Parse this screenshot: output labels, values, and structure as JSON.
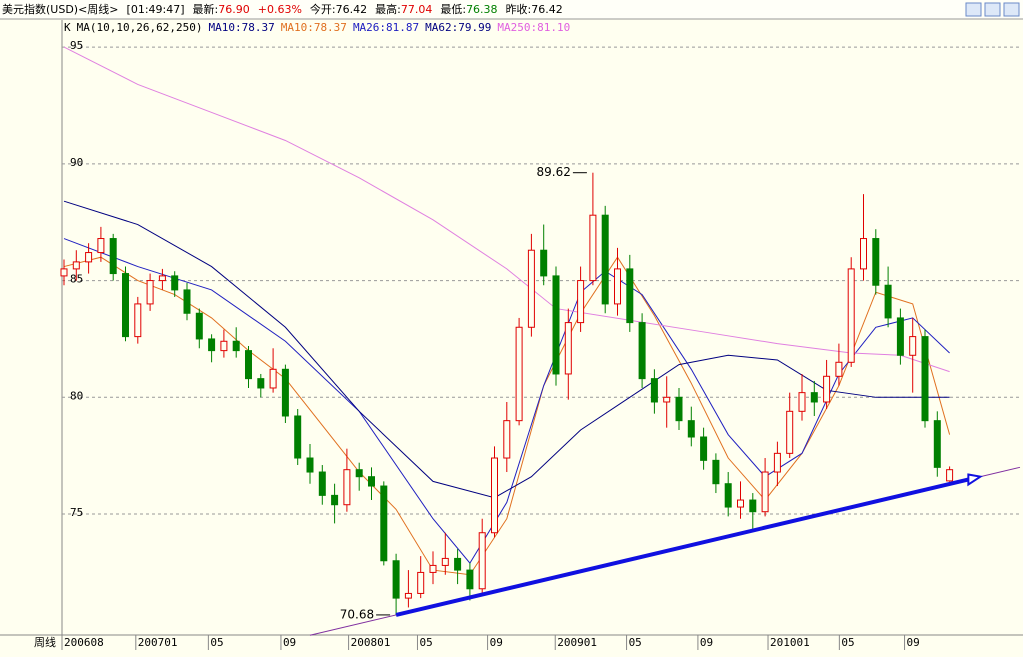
{
  "header": {
    "items": [
      {
        "text": "美元指数(USD)<周线>",
        "color": "#000000"
      },
      {
        "text": "[01:49:47]",
        "color": "#000000"
      },
      {
        "text": "最新:",
        "color": "#000000"
      },
      {
        "text": "76.90",
        "color": "#e00000"
      },
      {
        "text": "+0.63%",
        "color": "#e00000"
      },
      {
        "text": "今开:76.42",
        "color": "#000000"
      },
      {
        "text": "最高:",
        "color": "#000000"
      },
      {
        "text": "77.04",
        "color": "#e00000"
      },
      {
        "text": "最低:",
        "color": "#000000"
      },
      {
        "text": "76.38",
        "color": "#008000"
      },
      {
        "text": "昨收:76.42",
        "color": "#000000"
      }
    ]
  },
  "chart_data": {
    "type": "candlestick",
    "legend": [
      {
        "text": "K",
        "color": "#000000"
      },
      {
        "text": "MA(10,10,26,62,250)",
        "color": "#000000"
      },
      {
        "text": "MA10:78.37",
        "color": "#000080"
      },
      {
        "text": "MA10:78.37",
        "color": "#e07020"
      },
      {
        "text": "MA26:81.87",
        "color": "#2020c0"
      },
      {
        "text": "MA62:79.99",
        "color": "#000080"
      },
      {
        "text": "MA250:81.10",
        "color": "#e060e0"
      }
    ],
    "period_label": "周线",
    "up_color": "#e00000",
    "down_color": "#008000",
    "ohlc": [
      [
        85.2,
        85.9,
        84.8,
        85.5
      ],
      [
        85.5,
        86.3,
        85.0,
        85.8
      ],
      [
        85.8,
        86.6,
        85.3,
        86.2
      ],
      [
        86.2,
        87.3,
        85.8,
        86.8
      ],
      [
        86.8,
        87.0,
        85.0,
        85.3
      ],
      [
        85.3,
        85.6,
        82.4,
        82.6
      ],
      [
        82.6,
        84.3,
        82.3,
        84.0
      ],
      [
        84.0,
        85.3,
        83.7,
        85.0
      ],
      [
        85.0,
        85.5,
        84.6,
        85.2
      ],
      [
        85.2,
        85.4,
        84.3,
        84.6
      ],
      [
        84.6,
        84.9,
        83.3,
        83.6
      ],
      [
        83.6,
        83.8,
        82.1,
        82.5
      ],
      [
        82.5,
        82.7,
        81.5,
        82.0
      ],
      [
        82.0,
        82.9,
        81.7,
        82.4
      ],
      [
        82.4,
        83.0,
        81.7,
        82.0
      ],
      [
        82.0,
        82.2,
        80.4,
        80.8
      ],
      [
        80.8,
        81.0,
        80.0,
        80.4
      ],
      [
        80.4,
        82.1,
        80.2,
        81.2
      ],
      [
        81.2,
        81.4,
        78.9,
        79.2
      ],
      [
        79.2,
        79.5,
        77.1,
        77.4
      ],
      [
        77.4,
        78.0,
        76.3,
        76.8
      ],
      [
        76.8,
        77.1,
        75.4,
        75.8
      ],
      [
        75.8,
        76.3,
        74.6,
        75.4
      ],
      [
        75.4,
        77.8,
        75.1,
        76.9
      ],
      [
        76.9,
        77.2,
        76.0,
        76.6
      ],
      [
        76.6,
        77.0,
        75.6,
        76.2
      ],
      [
        76.2,
        76.4,
        72.8,
        73.0
      ],
      [
        73.0,
        73.3,
        70.68,
        71.4
      ],
      [
        71.4,
        72.6,
        71.0,
        71.6
      ],
      [
        71.6,
        73.2,
        71.4,
        72.5
      ],
      [
        72.5,
        73.4,
        72.0,
        72.8
      ],
      [
        72.8,
        74.2,
        72.4,
        73.1
      ],
      [
        73.1,
        73.5,
        72.0,
        72.6
      ],
      [
        72.6,
        72.9,
        71.3,
        71.8
      ],
      [
        71.8,
        74.8,
        71.6,
        74.2
      ],
      [
        74.2,
        77.9,
        74.0,
        77.4
      ],
      [
        77.4,
        79.8,
        76.8,
        79.0
      ],
      [
        79.0,
        83.4,
        78.8,
        83.0
      ],
      [
        83.0,
        87.0,
        82.6,
        86.3
      ],
      [
        86.3,
        87.4,
        84.8,
        85.2
      ],
      [
        85.2,
        85.6,
        80.5,
        81.0
      ],
      [
        81.0,
        83.8,
        79.9,
        83.2
      ],
      [
        83.2,
        85.6,
        82.8,
        85.0
      ],
      [
        85.0,
        89.62,
        84.8,
        87.8
      ],
      [
        87.8,
        88.2,
        83.6,
        84.0
      ],
      [
        84.0,
        86.4,
        83.5,
        85.5
      ],
      [
        85.5,
        86.1,
        82.8,
        83.2
      ],
      [
        83.2,
        83.6,
        80.4,
        80.8
      ],
      [
        80.8,
        81.2,
        79.3,
        79.8
      ],
      [
        79.8,
        80.9,
        78.7,
        80.0
      ],
      [
        80.0,
        80.4,
        78.6,
        79.0
      ],
      [
        79.0,
        79.6,
        77.9,
        78.3
      ],
      [
        78.3,
        78.7,
        76.9,
        77.3
      ],
      [
        77.3,
        77.6,
        75.9,
        76.3
      ],
      [
        76.3,
        76.8,
        74.9,
        75.3
      ],
      [
        75.3,
        76.4,
        74.8,
        75.6
      ],
      [
        75.6,
        75.9,
        74.3,
        75.1
      ],
      [
        75.1,
        77.4,
        74.9,
        76.8
      ],
      [
        76.8,
        78.1,
        76.2,
        77.6
      ],
      [
        77.6,
        80.2,
        77.4,
        79.4
      ],
      [
        79.4,
        81.0,
        79.0,
        80.2
      ],
      [
        80.2,
        80.7,
        79.2,
        79.8
      ],
      [
        79.8,
        81.6,
        79.5,
        80.9
      ],
      [
        80.9,
        82.3,
        80.5,
        81.5
      ],
      [
        81.5,
        86.0,
        81.3,
        85.5
      ],
      [
        85.5,
        88.7,
        85.0,
        86.8
      ],
      [
        86.8,
        87.2,
        84.4,
        84.8
      ],
      [
        84.8,
        85.6,
        83.0,
        83.4
      ],
      [
        83.4,
        83.8,
        81.4,
        81.8
      ],
      [
        81.8,
        83.4,
        80.2,
        82.6
      ],
      [
        82.6,
        82.9,
        78.7,
        79.0
      ],
      [
        79.0,
        79.4,
        76.6,
        77.0
      ],
      [
        76.42,
        77.04,
        76.38,
        76.9
      ]
    ],
    "series": [
      {
        "color": "#e07020",
        "x": [
          0,
          3,
          6,
          9,
          12,
          15,
          18,
          21,
          24,
          27,
          30,
          33,
          36,
          39,
          42,
          45,
          48,
          51,
          54,
          57,
          60,
          63,
          66,
          69,
          72
        ],
        "values": [
          85.6,
          86.0,
          85.0,
          84.4,
          83.4,
          82.0,
          80.8,
          78.8,
          76.8,
          75.2,
          72.6,
          72.4,
          74.8,
          80.5,
          83.6,
          86.0,
          83.5,
          80.6,
          77.4,
          75.6,
          77.6,
          80.5,
          84.5,
          84.0,
          78.4
        ]
      },
      {
        "color": "#2020c0",
        "x": [
          0,
          6,
          12,
          18,
          24,
          30,
          33,
          36,
          39,
          42,
          44,
          47,
          51,
          54,
          57,
          60,
          63,
          66,
          69,
          72
        ],
        "values": [
          86.8,
          85.6,
          84.6,
          82.4,
          79.4,
          74.8,
          72.9,
          75.5,
          80.5,
          84.5,
          85.4,
          84.4,
          81.2,
          78.4,
          76.6,
          77.6,
          81.0,
          83.0,
          83.4,
          81.9
        ]
      },
      {
        "color": "#000080",
        "x": [
          0,
          6,
          12,
          18,
          24,
          30,
          35,
          38,
          42,
          46,
          50,
          54,
          58,
          62,
          66,
          69,
          72
        ],
        "values": [
          88.4,
          87.4,
          85.6,
          83.0,
          79.4,
          76.4,
          75.7,
          76.6,
          78.6,
          80.0,
          81.4,
          81.8,
          81.6,
          80.3,
          80.0,
          80.0,
          80.0
        ]
      },
      {
        "color": "#e080e0",
        "x": [
          0,
          6,
          12,
          18,
          24,
          30,
          36,
          40,
          46,
          52,
          58,
          64,
          68,
          72
        ],
        "values": [
          95.0,
          93.4,
          92.2,
          91.0,
          89.4,
          87.6,
          85.5,
          83.8,
          83.3,
          82.8,
          82.3,
          81.9,
          81.8,
          81.1
        ]
      }
    ],
    "trendline": {
      "color": "#1010e0",
      "x": [
        27,
        74.5
      ],
      "values": [
        70.68,
        76.6
      ]
    },
    "annotations": [
      {
        "x": 43,
        "value": 89.62
      },
      {
        "x": 27,
        "value": 70.68
      }
    ],
    "xlim": [
      0,
      78
    ],
    "ylim": [
      69.82,
      96.16
    ],
    "yticks": [
      75,
      80,
      85,
      90,
      95
    ],
    "xticks": [
      {
        "value": 0,
        "label": "200608"
      },
      {
        "value": 6,
        "label": "200701"
      },
      {
        "value": 11.9,
        "label": "05"
      },
      {
        "value": 17.8,
        "label": "09"
      },
      {
        "value": 23.3,
        "label": "200801"
      },
      {
        "value": 28.9,
        "label": "05"
      },
      {
        "value": 34.6,
        "label": "09"
      },
      {
        "value": 40.1,
        "label": "200901"
      },
      {
        "value": 45.9,
        "label": "05"
      },
      {
        "value": 51.7,
        "label": "09"
      },
      {
        "value": 57.4,
        "label": "201001"
      },
      {
        "value": 63.2,
        "label": "05"
      },
      {
        "value": 68.5,
        "label": "09"
      }
    ],
    "grid": true
  }
}
